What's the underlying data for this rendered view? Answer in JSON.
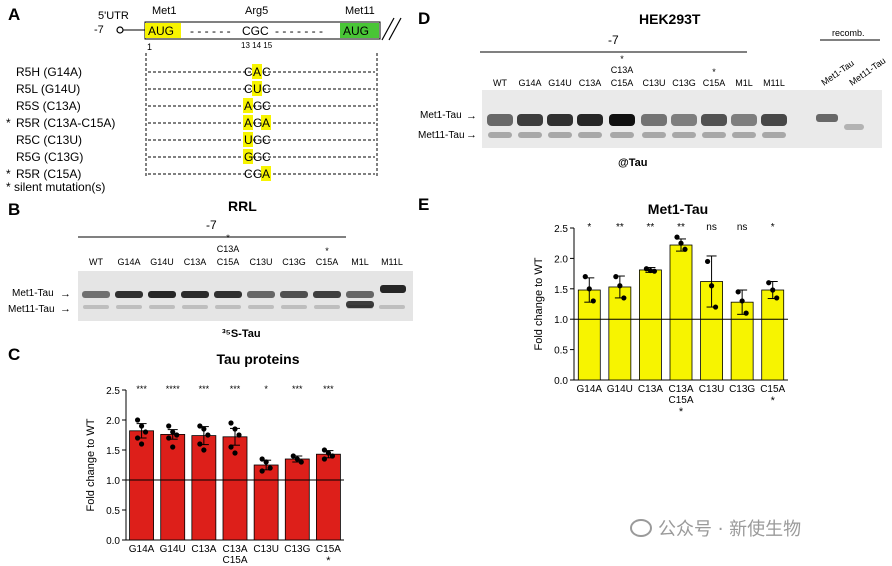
{
  "panel_a": {
    "letter": "A",
    "utr_label": "5'UTR",
    "utr_pos": "-7",
    "met1_label": "Met1",
    "arg5_label": "Arg5",
    "met11_label": "Met11",
    "codon_met1": "AUG",
    "codon_arg5": "CGC",
    "codon_met11": "AUG",
    "pos_1": "1",
    "pos_13_15": "13 14 15",
    "mutants": [
      {
        "star": "",
        "label": "R5H (G14A)",
        "c1": "C",
        "c2": "A",
        "c3": "C",
        "hl": 2
      },
      {
        "star": "",
        "label": "R5L (G14U)",
        "c1": "C",
        "c2": "U",
        "c3": "C",
        "hl": 2
      },
      {
        "star": "",
        "label": "R5S (C13A)",
        "c1": "A",
        "c2": "G",
        "c3": "C",
        "hl": 1
      },
      {
        "star": "*",
        "label": "R5R (C13A-C15A)",
        "c1": "A",
        "c2": "G",
        "c3": "A",
        "hl": 13
      },
      {
        "star": "",
        "label": "R5C (C13U)",
        "c1": "U",
        "c2": "G",
        "c3": "C",
        "hl": 1
      },
      {
        "star": "",
        "label": "R5G (C13G)",
        "c1": "G",
        "c2": "G",
        "c3": "C",
        "hl": 1
      },
      {
        "star": "*",
        "label": "R5R (C15A)",
        "c1": "C",
        "c2": "G",
        "c3": "A",
        "hl": 3
      }
    ],
    "silent_note": "* silent mutation(s)"
  },
  "panel_b": {
    "letter": "B",
    "title": "RRL",
    "neg7": "-7",
    "lanes": [
      "WT",
      "G14A",
      "G14U",
      "C13A",
      "C13A C15A",
      "C13U",
      "C13G",
      "C15A",
      "M1L",
      "M11L"
    ],
    "star": "*",
    "met1_tau": "Met1-Tau",
    "met11_tau": "Met11-Tau",
    "caption": "³⁵S-Tau"
  },
  "panel_d": {
    "letter": "D",
    "title": "HEK293T",
    "neg7": "-7",
    "recomb": "recomb.",
    "lanes": [
      "WT",
      "G14A",
      "G14U",
      "C13A",
      "C13A C15A",
      "C13U",
      "C13G",
      "C15A",
      "M1L",
      "M11L"
    ],
    "recomb_lanes": [
      "Met1-Tau",
      "Met11-Tau"
    ],
    "star": "*",
    "met1_tau": "Met1-Tau",
    "met11_tau": "Met11-Tau",
    "caption": "@Tau"
  },
  "watermark": "公众号 · 新使生物",
  "chart_data": [
    {
      "panel": "C",
      "type": "bar",
      "title": "Tau proteins",
      "ylabel": "Fold change to WT",
      "ylim": [
        0,
        2.5
      ],
      "yticks": [
        "0.0",
        "0.5",
        "1.0",
        "1.5",
        "2.0",
        "2.5"
      ],
      "categories": [
        "G14A",
        "G14U",
        "C13A",
        "C13A C15A",
        "C13U",
        "C13G",
        "C15A"
      ],
      "values": [
        1.82,
        1.76,
        1.74,
        1.72,
        1.25,
        1.35,
        1.43
      ],
      "errors": [
        0.12,
        0.08,
        0.15,
        0.14,
        0.08,
        0.05,
        0.06
      ],
      "significance": [
        "***",
        "****",
        "***",
        "***",
        "*",
        "***",
        "***"
      ],
      "silent": [
        false,
        false,
        false,
        true,
        false,
        false,
        true
      ],
      "reference_line": 1.0,
      "color": "#dd1f1a",
      "points": [
        [
          2.0,
          1.9,
          1.8,
          1.7,
          1.6
        ],
        [
          1.9,
          1.8,
          1.75,
          1.7,
          1.55
        ],
        [
          1.9,
          1.85,
          1.75,
          1.6,
          1.5
        ],
        [
          1.95,
          1.85,
          1.75,
          1.55,
          1.45
        ],
        [
          1.35,
          1.3,
          1.2,
          1.15
        ],
        [
          1.4,
          1.35,
          1.3
        ],
        [
          1.5,
          1.45,
          1.4,
          1.35
        ]
      ]
    },
    {
      "panel": "E",
      "type": "bar",
      "title": "Met1-Tau",
      "ylabel": "Fold change to WT",
      "ylim": [
        0,
        2.5
      ],
      "yticks": [
        "0.0",
        "0.5",
        "1.0",
        "1.5",
        "2.0",
        "2.5"
      ],
      "categories": [
        "G14A",
        "G14U",
        "C13A",
        "C13A C15A",
        "C13U",
        "C13G",
        "C15A"
      ],
      "values": [
        1.48,
        1.53,
        1.81,
        2.22,
        1.62,
        1.28,
        1.48
      ],
      "errors": [
        0.2,
        0.18,
        0.04,
        0.1,
        0.42,
        0.2,
        0.14
      ],
      "significance": [
        "*",
        "**",
        "**",
        "**",
        "ns",
        "ns",
        "*"
      ],
      "silent": [
        false,
        false,
        false,
        true,
        false,
        false,
        true
      ],
      "reference_line": 1.0,
      "color": "#f7f400",
      "points": [
        [
          1.7,
          1.5,
          1.3
        ],
        [
          1.7,
          1.55,
          1.35
        ],
        [
          1.83,
          1.8,
          1.79
        ],
        [
          2.35,
          2.25,
          2.15
        ],
        [
          1.95,
          1.55,
          1.2
        ],
        [
          1.45,
          1.3,
          1.1
        ],
        [
          1.6,
          1.48,
          1.35
        ]
      ]
    }
  ]
}
